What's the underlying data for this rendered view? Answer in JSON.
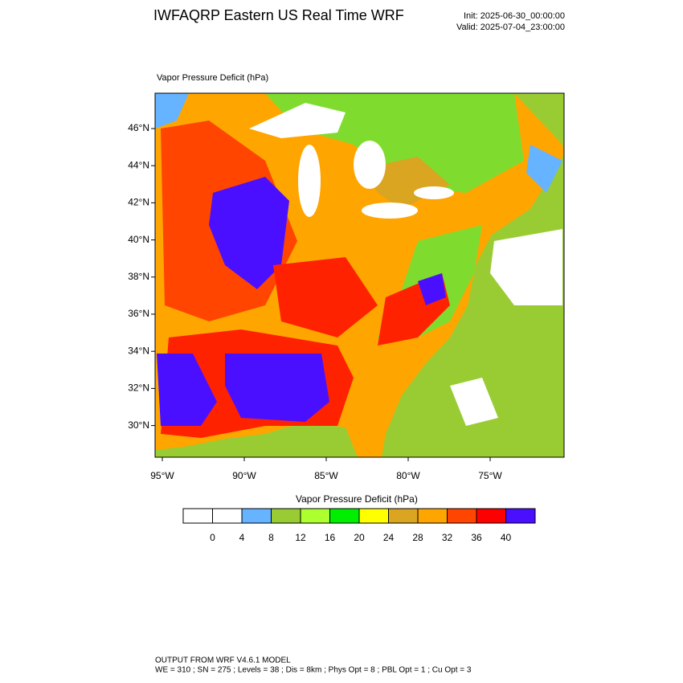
{
  "header": {
    "title": "IWFAQRP Eastern US Real Time WRF",
    "init": "Init: 2025-06-30_00:00:00",
    "valid": "Valid: 2025-07-04_23:00:00"
  },
  "map": {
    "label": "Vapor Pressure Deficit   (hPa)",
    "lat_ticks": [
      {
        "value": 46,
        "label": "46°N"
      },
      {
        "value": 44,
        "label": "44°N"
      },
      {
        "value": 42,
        "label": "42°N"
      },
      {
        "value": 40,
        "label": "40°N"
      },
      {
        "value": 38,
        "label": "38°N"
      },
      {
        "value": 36,
        "label": "36°N"
      },
      {
        "value": 34,
        "label": "34°N"
      },
      {
        "value": 32,
        "label": "32°N"
      },
      {
        "value": 30,
        "label": "30°N"
      }
    ],
    "lon_ticks": [
      {
        "value": -95,
        "label": "95°W"
      },
      {
        "value": -90,
        "label": "90°W"
      },
      {
        "value": -85,
        "label": "85°W"
      },
      {
        "value": -80,
        "label": "80°W"
      },
      {
        "value": -75,
        "label": "75°W"
      }
    ]
  },
  "colorbar": {
    "title": "Vapor Pressure Deficit  (hPa)",
    "colors": [
      "#ffffff",
      "#ffffff",
      "#66b3ff",
      "#99cc33",
      "#adff2f",
      "#00ee00",
      "#ffff00",
      "#daa520",
      "#ffa500",
      "#ff4500",
      "#ff0000",
      "#4b0fff"
    ],
    "levels": [
      0,
      4,
      8,
      12,
      16,
      20,
      24,
      28,
      32,
      36,
      40
    ]
  },
  "footer": {
    "line1": "OUTPUT FROM WRF V4.6.1 MODEL",
    "line2": "WE = 310 ; SN = 275 ; Levels = 38 ; Dis = 8km ; Phys Opt = 8 ; PBL Opt = 1 ; Cu Opt = 3"
  }
}
